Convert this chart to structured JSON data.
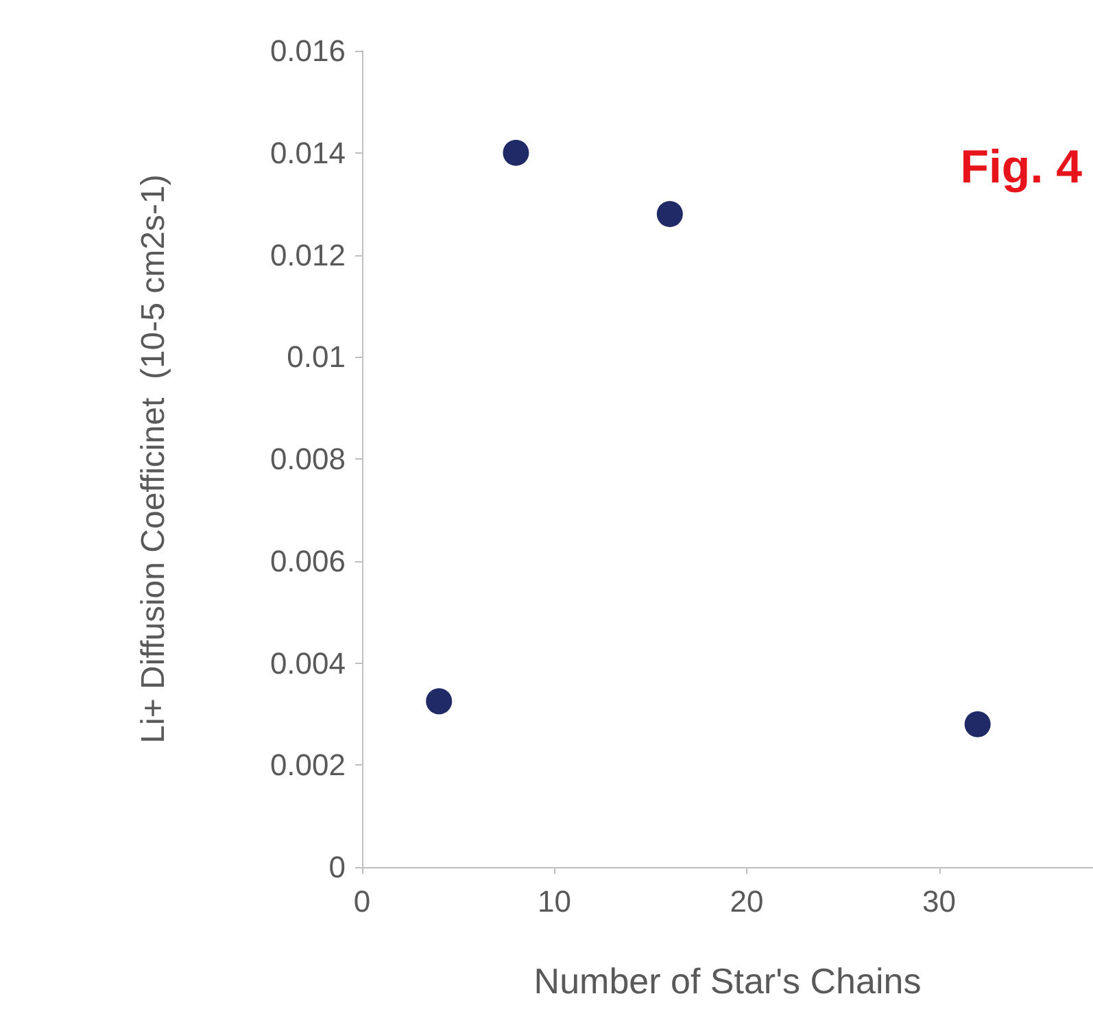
{
  "chart_data": {
    "type": "scatter",
    "xlabel": "Number of Star's Chains",
    "ylabel": "Li+ Diffusion Coefficinet  (10-5 cm2s-1)",
    "annotations": [
      "Fig. 4"
    ],
    "x": [
      4,
      8,
      16,
      32
    ],
    "series": [
      {
        "color": "#1f2a66",
        "values": [
          0.00325,
          0.014,
          0.0128,
          0.0028
        ]
      }
    ],
    "xlim": [
      0,
      38
    ],
    "xticks": [
      0,
      10,
      20,
      30
    ],
    "ylim": [
      0,
      0.016
    ],
    "yticks": [
      0,
      0.002,
      0.004,
      0.006,
      0.008,
      0.01,
      0.012,
      0.014,
      0.016
    ],
    "grid": false,
    "marker": "circle"
  }
}
